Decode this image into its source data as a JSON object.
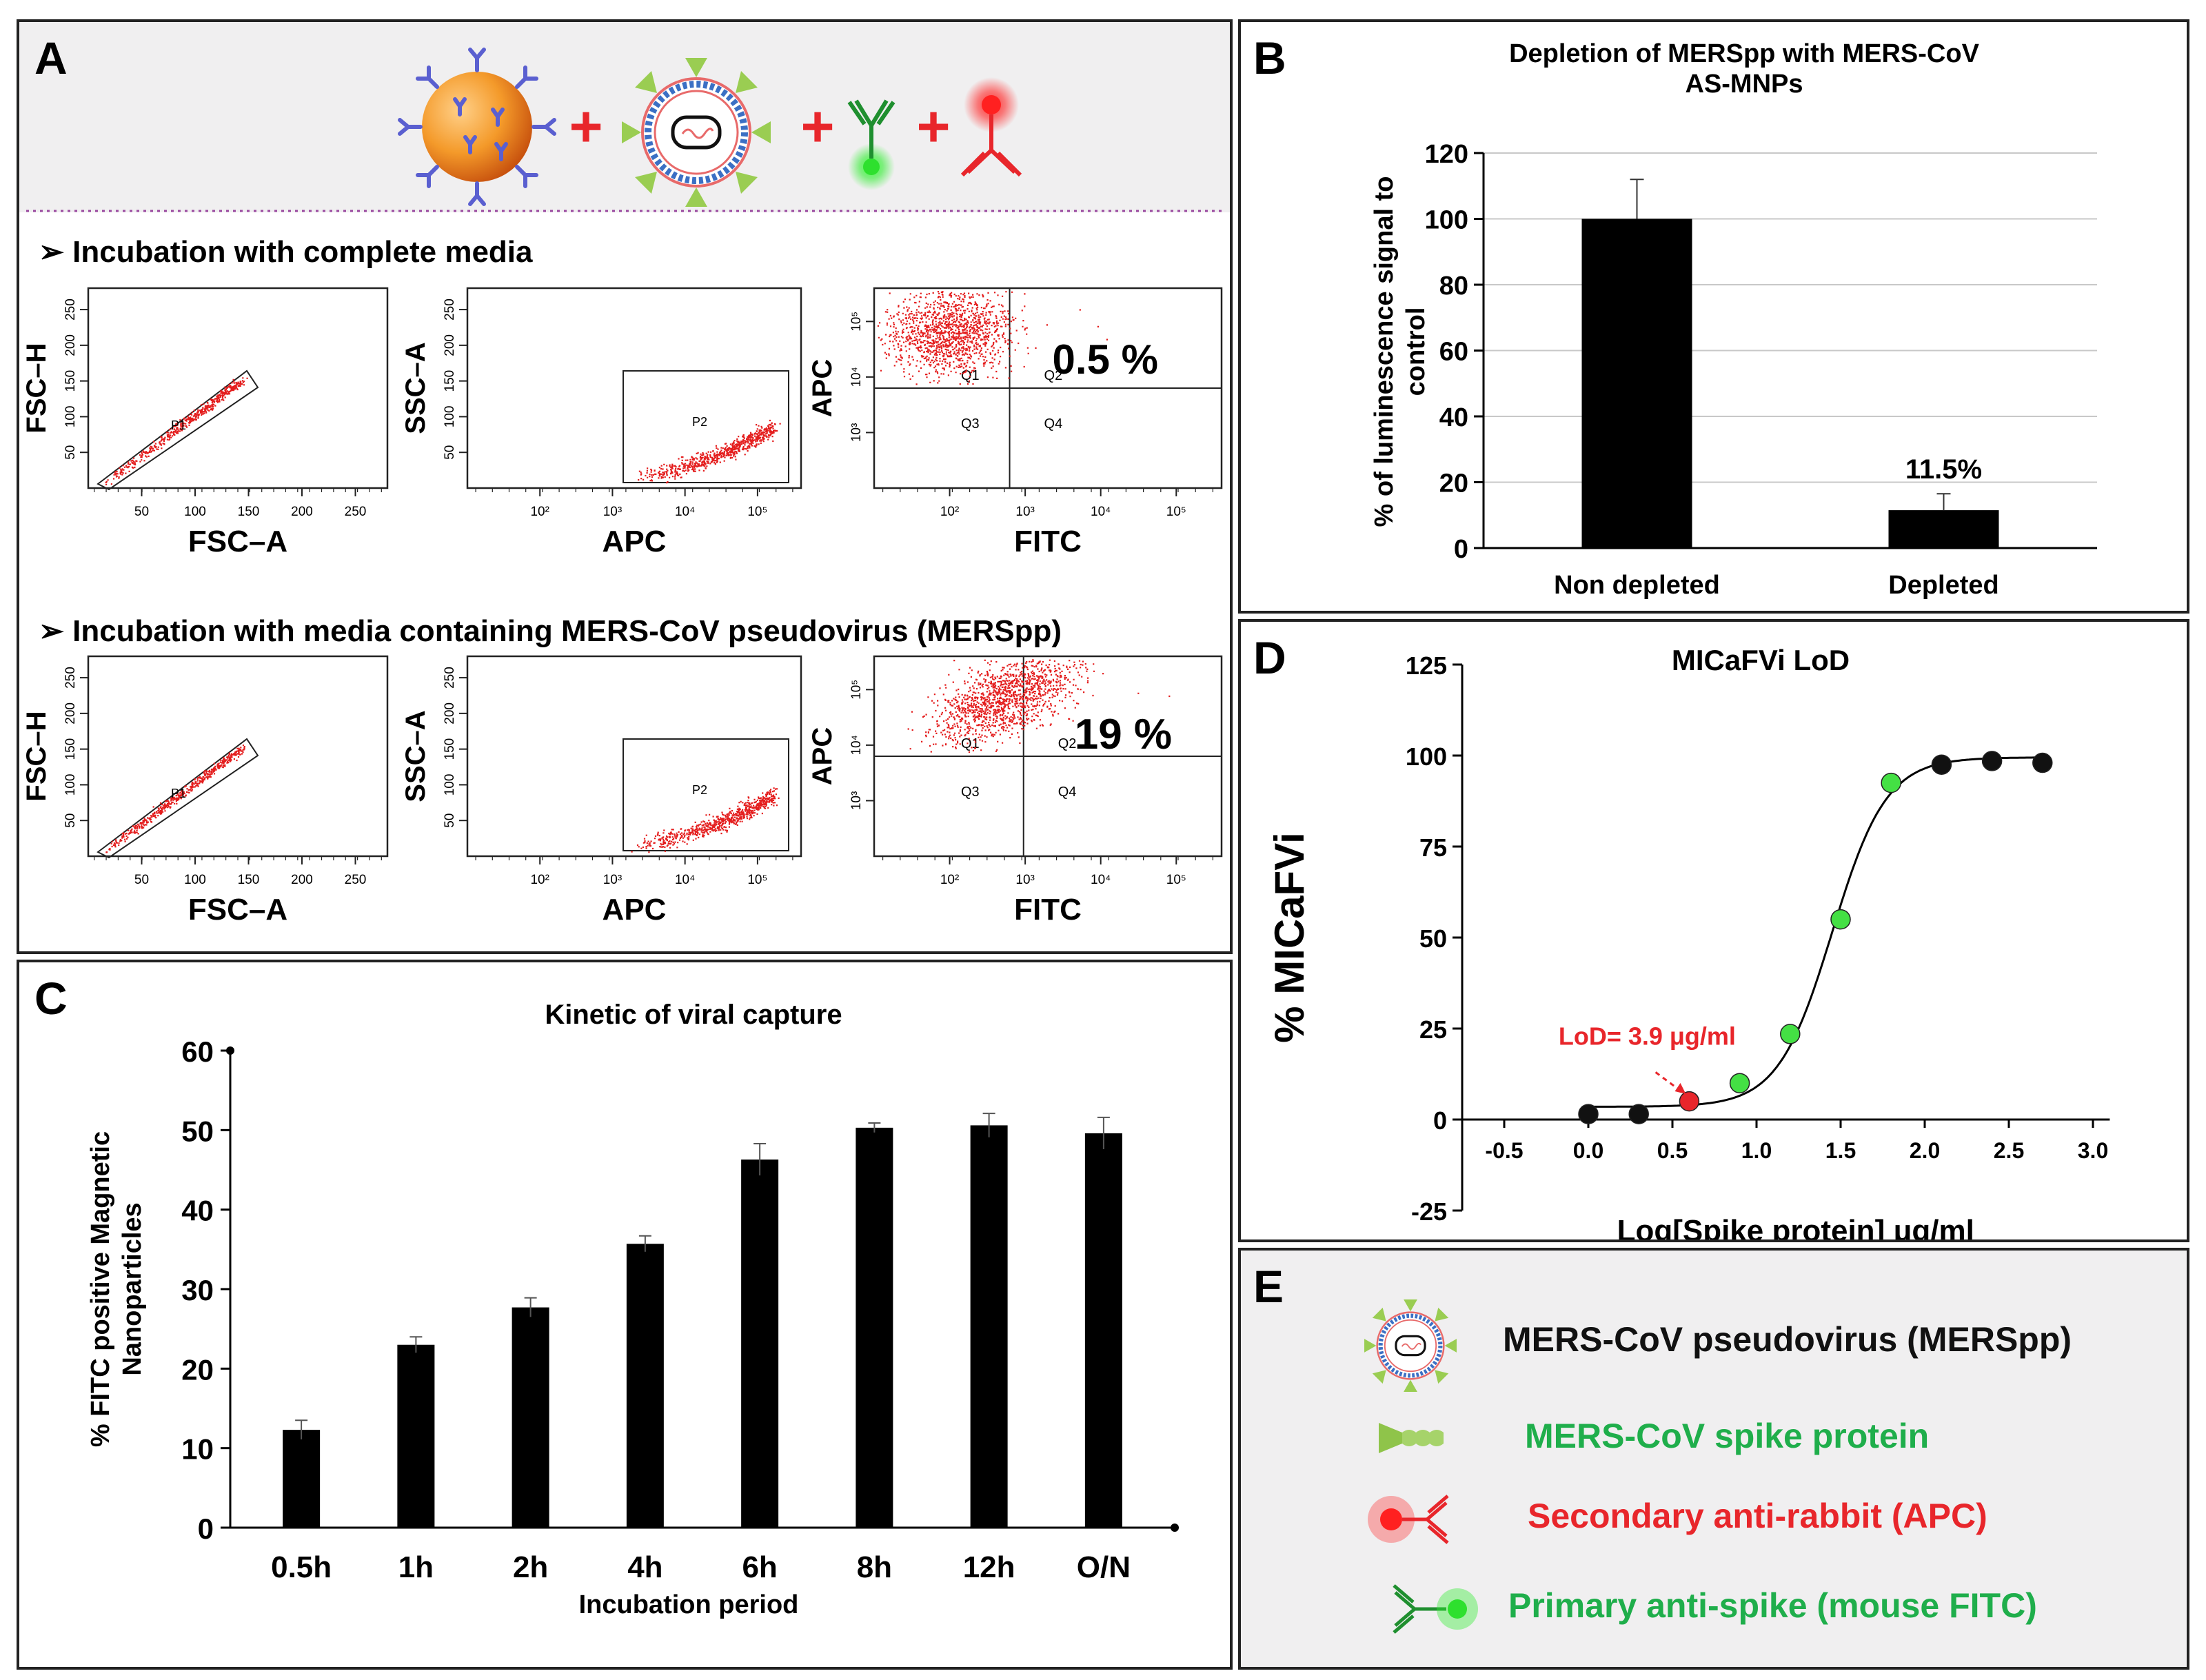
{
  "panels": {
    "A": {
      "letter": "A",
      "section1": "Incubation with complete media",
      "section2": "Incubation with media containing MERS-CoV pseudovirus (MERSpp)",
      "plus": "+",
      "plots": [
        [
          {
            "ylabel": "FSC–H",
            "xlabel": "FSC–A",
            "xticks": [
              "50",
              "100",
              "150",
              "200",
              "250"
            ],
            "yticks": [
              "50",
              "100",
              "150",
              "200",
              "250"
            ],
            "gate": "P1"
          },
          {
            "ylabel": "SSC–A",
            "xlabel": "APC",
            "xticks": [
              "10²",
              "10³",
              "10⁴",
              "10⁵"
            ],
            "yticks": [
              "50",
              "100",
              "150",
              "200",
              "250"
            ],
            "gate": "P2"
          },
          {
            "ylabel": "APC",
            "xlabel": "FITC",
            "xticks": [
              "10²",
              "10³",
              "10⁴",
              "10⁵"
            ],
            "yticks": [
              "10³",
              "10⁴",
              "10⁵"
            ],
            "quads": [
              "Q1",
              "Q2",
              "Q3",
              "Q4"
            ],
            "percent": "0.5 %"
          }
        ],
        [
          {
            "ylabel": "FSC–H",
            "xlabel": "FSC–A",
            "xticks": [
              "50",
              "100",
              "150",
              "200",
              "250"
            ],
            "yticks": [
              "50",
              "100",
              "150",
              "200",
              "250"
            ],
            "gate": "P1"
          },
          {
            "ylabel": "SSC–A",
            "xlabel": "APC",
            "xticks": [
              "10²",
              "10³",
              "10⁴",
              "10⁵"
            ],
            "yticks": [
              "50",
              "100",
              "150",
              "200",
              "250"
            ],
            "gate": "P2"
          },
          {
            "ylabel": "APC",
            "xlabel": "FITC",
            "xticks": [
              "10²",
              "10³",
              "10⁴",
              "10⁵"
            ],
            "yticks": [
              "10³",
              "10⁴",
              "10⁵"
            ],
            "quads": [
              "Q1",
              "Q2",
              "Q3",
              "Q4"
            ],
            "percent": "19 %"
          }
        ]
      ]
    },
    "B": {
      "letter": "B"
    },
    "C": {
      "letter": "C"
    },
    "D": {
      "letter": "D"
    },
    "E": {
      "letter": "E",
      "items": [
        {
          "label": "MERS-CoV pseudovirus (MERSpp)",
          "color": "#111111"
        },
        {
          "label": "MERS-CoV spike protein",
          "color": "#1fae4b"
        },
        {
          "label": "Secondary anti-rabbit (APC)",
          "color": "#e8262b"
        },
        {
          "label": "Primary anti-spike (mouse FITC)",
          "color": "#1fae4b"
        }
      ]
    }
  },
  "chart_data": [
    {
      "panel": "B",
      "type": "bar",
      "title": "Depletion of MERSpp with MERS-CoV AS-MNPs",
      "title_lines": [
        "Depletion of MERSpp with MERS-CoV",
        "AS-MNPs"
      ],
      "categories": [
        "Non depleted",
        "Depleted"
      ],
      "values": [
        100,
        11.5
      ],
      "errors": [
        12,
        5
      ],
      "annotation": "11.5%",
      "ylabel": "% of luminescence signal to control",
      "ylabel_lines": [
        "% of luminescence signal to",
        "control"
      ],
      "xlabel": "",
      "ylim": [
        0,
        120
      ],
      "yticks": [
        0,
        20,
        40,
        60,
        80,
        100,
        120
      ],
      "grid": true
    },
    {
      "panel": "C",
      "type": "bar",
      "title": "Kinetic of viral capture",
      "categories": [
        "0.5h",
        "1h",
        "2h",
        "4h",
        "6h",
        "8h",
        "12h",
        "O/N"
      ],
      "values": [
        12.3,
        23,
        27.7,
        35.7,
        46.3,
        50.3,
        50.6,
        49.6
      ],
      "errors": [
        1.2,
        1.0,
        1.2,
        1.0,
        2.0,
        0.6,
        1.5,
        2.0
      ],
      "ylabel": "% FITC positive Magnetic Nanoparticles",
      "ylabel_lines": [
        "% FITC positive Magnetic",
        "Nanoparticles"
      ],
      "xlabel": "Incubation period",
      "ylim": [
        0,
        60
      ],
      "yticks": [
        0,
        10,
        20,
        30,
        40,
        50,
        60
      ],
      "grid": false
    },
    {
      "panel": "D",
      "type": "scatter",
      "title": "MICaFVi LoD",
      "xlabel": "Log[Spike protein] μg/ml",
      "ylabel": "% MICaFVi",
      "xlim": [
        -0.75,
        3.1
      ],
      "ylim": [
        -25,
        125
      ],
      "xticks": [
        "-0.5",
        "0.0",
        "0.5",
        "1.0",
        "1.5",
        "2.0",
        "2.5",
        "3.0"
      ],
      "yticks": [
        "-25",
        "0",
        "25",
        "50",
        "75",
        "100",
        "125"
      ],
      "points": [
        {
          "x": 0.0,
          "y": 1.5,
          "color": "black"
        },
        {
          "x": 0.3,
          "y": 1.5,
          "color": "black"
        },
        {
          "x": 0.6,
          "y": 5,
          "color": "red"
        },
        {
          "x": 0.9,
          "y": 10,
          "color": "green"
        },
        {
          "x": 1.2,
          "y": 23.5,
          "color": "green"
        },
        {
          "x": 1.5,
          "y": 55,
          "color": "green"
        },
        {
          "x": 1.8,
          "y": 92.5,
          "color": "green"
        },
        {
          "x": 2.1,
          "y": 97.5,
          "color": "black"
        },
        {
          "x": 2.4,
          "y": 98.5,
          "color": "black"
        },
        {
          "x": 2.7,
          "y": 98,
          "color": "black"
        }
      ],
      "fit": {
        "bottom": 3.5,
        "top": 99.5,
        "logEC50": 1.45,
        "hill": 2.7
      },
      "annotation": "LoD= 3.9 μg/ml",
      "annotation_color": "#e8262b"
    }
  ]
}
